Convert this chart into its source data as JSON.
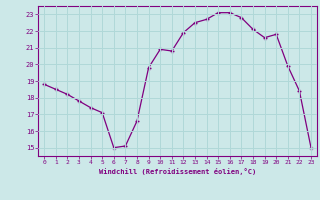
{
  "hours": [
    0,
    1,
    2,
    3,
    4,
    5,
    6,
    7,
    8,
    9,
    10,
    11,
    12,
    13,
    14,
    15,
    16,
    17,
    18,
    19,
    20,
    21,
    22,
    23
  ],
  "values": [
    18.8,
    18.5,
    18.2,
    17.8,
    17.4,
    17.1,
    15.0,
    15.1,
    16.6,
    19.8,
    20.9,
    20.8,
    21.9,
    22.5,
    22.7,
    23.1,
    23.1,
    22.8,
    22.1,
    21.6,
    21.8,
    19.9,
    18.4,
    15.0
  ],
  "line_color": "#800080",
  "marker": "+",
  "bg_color": "#cce8e8",
  "grid_color": "#b0d8d8",
  "xlabel": "Windchill (Refroidissement éolien,°C)",
  "xlabel_color": "#800080",
  "tick_color": "#800080",
  "spine_color": "#800080",
  "ylim_min": 14.5,
  "ylim_max": 23.5,
  "xlim_min": -0.5,
  "xlim_max": 23.5,
  "yticks": [
    15,
    16,
    17,
    18,
    19,
    20,
    21,
    22,
    23
  ],
  "xticks": [
    0,
    1,
    2,
    3,
    4,
    5,
    6,
    7,
    8,
    9,
    10,
    11,
    12,
    13,
    14,
    15,
    16,
    17,
    18,
    19,
    20,
    21,
    22,
    23
  ]
}
